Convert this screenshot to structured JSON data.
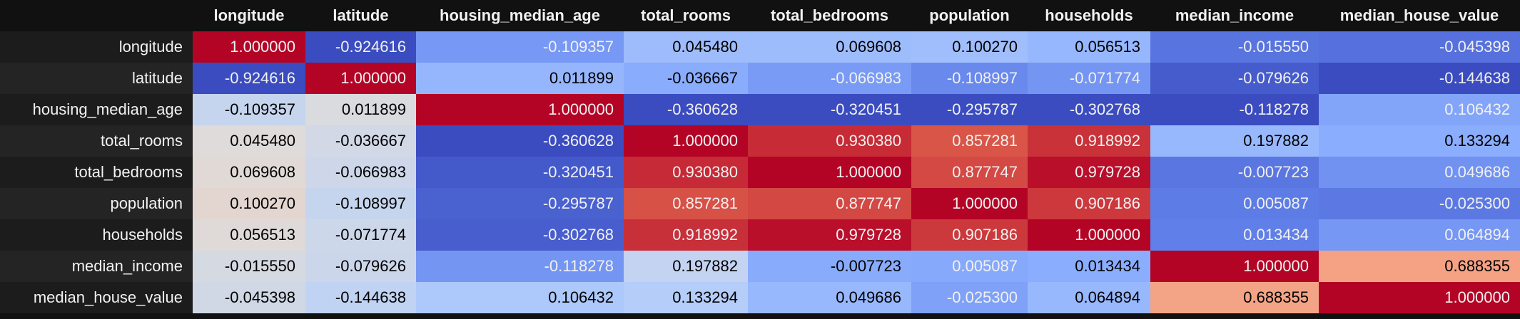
{
  "table": {
    "columns": [
      "longitude",
      "latitude",
      "housing_median_age",
      "total_rooms",
      "total_bedrooms",
      "population",
      "households",
      "median_income",
      "median_house_value"
    ],
    "rows": [
      {
        "label": "longitude",
        "cells": [
          "1.000000",
          "-0.924616",
          "-0.109357",
          "0.045480",
          "0.069608",
          "0.100270",
          "0.056513",
          "-0.015550",
          "-0.045398"
        ]
      },
      {
        "label": "latitude",
        "cells": [
          "-0.924616",
          "1.000000",
          "0.011899",
          "-0.036667",
          "-0.066983",
          "-0.108997",
          "-0.071774",
          "-0.079626",
          "-0.144638"
        ]
      },
      {
        "label": "housing_median_age",
        "cells": [
          "-0.109357",
          "0.011899",
          "1.000000",
          "-0.360628",
          "-0.320451",
          "-0.295787",
          "-0.302768",
          "-0.118278",
          "0.106432"
        ]
      },
      {
        "label": "total_rooms",
        "cells": [
          "0.045480",
          "-0.036667",
          "-0.360628",
          "1.000000",
          "0.930380",
          "0.857281",
          "0.918992",
          "0.197882",
          "0.133294"
        ]
      },
      {
        "label": "total_bedrooms",
        "cells": [
          "0.069608",
          "-0.066983",
          "-0.320451",
          "0.930380",
          "1.000000",
          "0.877747",
          "0.979728",
          "-0.007723",
          "0.049686"
        ]
      },
      {
        "label": "population",
        "cells": [
          "0.100270",
          "-0.108997",
          "-0.295787",
          "0.857281",
          "0.877747",
          "1.000000",
          "0.907186",
          "0.005087",
          "-0.025300"
        ]
      },
      {
        "label": "households",
        "cells": [
          "0.056513",
          "-0.071774",
          "-0.302768",
          "0.918992",
          "0.979728",
          "0.907186",
          "1.000000",
          "0.013434",
          "0.064894"
        ]
      },
      {
        "label": "median_income",
        "cells": [
          "-0.015550",
          "-0.079626",
          "-0.118278",
          "0.197882",
          "-0.007723",
          "0.005087",
          "0.013434",
          "1.000000",
          "0.688355"
        ]
      },
      {
        "label": "median_house_value",
        "cells": [
          "-0.045398",
          "-0.144638",
          "0.106432",
          "0.133294",
          "0.049686",
          "-0.025300",
          "0.064894",
          "0.688355",
          "1.000000"
        ]
      }
    ]
  }
}
